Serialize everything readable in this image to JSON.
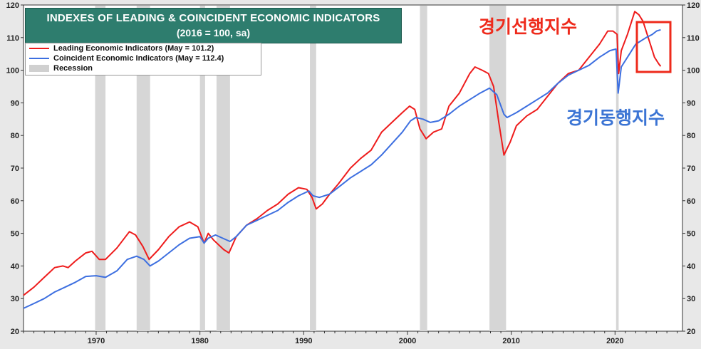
{
  "chart_data": {
    "type": "line",
    "title": "INDEXES OF LEADING & COINCIDENT ECONOMIC INDICATORS",
    "subtitle": "(2016 = 100, sa)",
    "xlim": [
      1963,
      2026.5
    ],
    "ylim": [
      20,
      120
    ],
    "x_ticks": [
      1970,
      1980,
      1990,
      2000,
      2010,
      2020
    ],
    "y_ticks": [
      20,
      30,
      40,
      50,
      60,
      70,
      80,
      90,
      100,
      110,
      120
    ],
    "recessions": [
      [
        1969.9,
        1970.9
      ],
      [
        1973.9,
        1975.2
      ],
      [
        1980.0,
        1980.5
      ],
      [
        1981.6,
        1982.9
      ],
      [
        1990.6,
        1991.2
      ],
      [
        2001.2,
        2001.9
      ],
      [
        2007.9,
        2009.5
      ],
      [
        2020.1,
        2020.35
      ]
    ],
    "legend": [
      {
        "label": "Leading Economic Indicators (May = 101.2)",
        "color": "#ee1c1c",
        "kind": "line"
      },
      {
        "label": "Coincident Economic Indicators (May = 112.4)",
        "color": "#3d6fe0",
        "kind": "line"
      },
      {
        "label": "Recession",
        "color": "#d0d0d0",
        "kind": "box"
      }
    ],
    "series": [
      {
        "name": "Leading Economic Indicators",
        "color": "#ee1c1c",
        "points": [
          [
            1963,
            31
          ],
          [
            1964,
            33.5
          ],
          [
            1965,
            36.5
          ],
          [
            1966,
            39.5
          ],
          [
            1966.8,
            40
          ],
          [
            1967.3,
            39.5
          ],
          [
            1968,
            41.5
          ],
          [
            1969,
            44
          ],
          [
            1969.6,
            44.5
          ],
          [
            1970.3,
            42
          ],
          [
            1970.9,
            42
          ],
          [
            1972,
            45.5
          ],
          [
            1973.2,
            50.5
          ],
          [
            1973.8,
            49.5
          ],
          [
            1974.5,
            46
          ],
          [
            1975.1,
            42
          ],
          [
            1976,
            45
          ],
          [
            1977,
            49
          ],
          [
            1978,
            52
          ],
          [
            1979,
            53.5
          ],
          [
            1979.8,
            52
          ],
          [
            1980.4,
            47
          ],
          [
            1980.8,
            50
          ],
          [
            1981.3,
            48
          ],
          [
            1982.3,
            45
          ],
          [
            1982.8,
            44
          ],
          [
            1983.5,
            49
          ],
          [
            1984.5,
            52.5
          ],
          [
            1985.5,
            54.5
          ],
          [
            1986.5,
            57
          ],
          [
            1987.5,
            59
          ],
          [
            1988.5,
            62
          ],
          [
            1989.5,
            64
          ],
          [
            1990.3,
            63.5
          ],
          [
            1990.8,
            61
          ],
          [
            1991.2,
            57.5
          ],
          [
            1991.8,
            59
          ],
          [
            1992.5,
            62
          ],
          [
            1993.3,
            65
          ],
          [
            1994.5,
            70
          ],
          [
            1995.5,
            73
          ],
          [
            1996.5,
            75.5
          ],
          [
            1997.5,
            81
          ],
          [
            1998.5,
            84
          ],
          [
            1999.5,
            87
          ],
          [
            2000.2,
            89
          ],
          [
            2000.7,
            88
          ],
          [
            2001.2,
            82
          ],
          [
            2001.8,
            79
          ],
          [
            2002.5,
            81
          ],
          [
            2003.3,
            82
          ],
          [
            2004,
            89
          ],
          [
            2005,
            93
          ],
          [
            2006,
            99
          ],
          [
            2006.5,
            101
          ],
          [
            2007.2,
            100
          ],
          [
            2007.8,
            99
          ],
          [
            2008.3,
            95
          ],
          [
            2008.8,
            84
          ],
          [
            2009.3,
            74
          ],
          [
            2009.9,
            78
          ],
          [
            2010.5,
            83
          ],
          [
            2011.5,
            86
          ],
          [
            2012.5,
            88
          ],
          [
            2013.5,
            92
          ],
          [
            2014.5,
            96
          ],
          [
            2015.5,
            99
          ],
          [
            2016.5,
            100
          ],
          [
            2017.5,
            104
          ],
          [
            2018.5,
            108
          ],
          [
            2019.3,
            112
          ],
          [
            2019.8,
            112
          ],
          [
            2020.2,
            111
          ],
          [
            2020.35,
            99
          ],
          [
            2020.6,
            106
          ],
          [
            2021.2,
            111
          ],
          [
            2021.9,
            118
          ],
          [
            2022.3,
            117
          ],
          [
            2022.7,
            115
          ],
          [
            2023.3,
            109
          ],
          [
            2023.8,
            104
          ],
          [
            2024.2,
            102
          ],
          [
            2024.4,
            101.2
          ]
        ]
      },
      {
        "name": "Coincident Economic Indicators",
        "color": "#3d6fe0",
        "points": [
          [
            1963,
            27
          ],
          [
            1964,
            28.5
          ],
          [
            1965,
            30
          ],
          [
            1966,
            32
          ],
          [
            1967,
            33.5
          ],
          [
            1968,
            35
          ],
          [
            1969,
            36.8
          ],
          [
            1970,
            37
          ],
          [
            1970.9,
            36.5
          ],
          [
            1972,
            38.5
          ],
          [
            1973,
            42
          ],
          [
            1973.9,
            43
          ],
          [
            1974.6,
            42
          ],
          [
            1975.2,
            40
          ],
          [
            1976,
            41.5
          ],
          [
            1977,
            44
          ],
          [
            1978,
            46.5
          ],
          [
            1979,
            48.5
          ],
          [
            1980,
            49
          ],
          [
            1980.4,
            47
          ],
          [
            1980.8,
            48.5
          ],
          [
            1981.5,
            49.5
          ],
          [
            1982.2,
            48.5
          ],
          [
            1982.9,
            47.5
          ],
          [
            1983.5,
            49
          ],
          [
            1984.5,
            52.5
          ],
          [
            1985.5,
            54
          ],
          [
            1986.5,
            55.5
          ],
          [
            1987.5,
            57
          ],
          [
            1988.5,
            59.5
          ],
          [
            1989.5,
            61.5
          ],
          [
            1990.5,
            63
          ],
          [
            1990.9,
            61.5
          ],
          [
            1991.5,
            61
          ],
          [
            1992.5,
            62
          ],
          [
            1993.5,
            64.5
          ],
          [
            1994.5,
            67
          ],
          [
            1995.5,
            69
          ],
          [
            1996.5,
            71
          ],
          [
            1997.5,
            74
          ],
          [
            1998.5,
            77.5
          ],
          [
            1999.5,
            81
          ],
          [
            2000.3,
            84.5
          ],
          [
            2000.8,
            85.5
          ],
          [
            2001.5,
            85
          ],
          [
            2002.2,
            84
          ],
          [
            2003,
            84.5
          ],
          [
            2004,
            86.5
          ],
          [
            2005,
            89
          ],
          [
            2006,
            91
          ],
          [
            2007,
            93
          ],
          [
            2007.9,
            94.5
          ],
          [
            2008.6,
            92.5
          ],
          [
            2009.3,
            86.5
          ],
          [
            2009.6,
            85.5
          ],
          [
            2010.5,
            87
          ],
          [
            2011.5,
            89
          ],
          [
            2012.5,
            91
          ],
          [
            2013.5,
            93
          ],
          [
            2014.5,
            96
          ],
          [
            2015.5,
            98.5
          ],
          [
            2016.5,
            100
          ],
          [
            2017.5,
            101.5
          ],
          [
            2018.5,
            104
          ],
          [
            2019.5,
            106
          ],
          [
            2020.1,
            106.5
          ],
          [
            2020.3,
            93
          ],
          [
            2020.6,
            101
          ],
          [
            2021.2,
            104
          ],
          [
            2022,
            108
          ],
          [
            2022.5,
            109
          ],
          [
            2023,
            110
          ],
          [
            2023.6,
            111
          ],
          [
            2024,
            112
          ],
          [
            2024.4,
            112.4
          ]
        ]
      }
    ]
  },
  "annotations": {
    "leading_ko": "경기선행지수",
    "coincident_ko": "경기동행지수",
    "highlight_color": "#ee2a1b"
  }
}
